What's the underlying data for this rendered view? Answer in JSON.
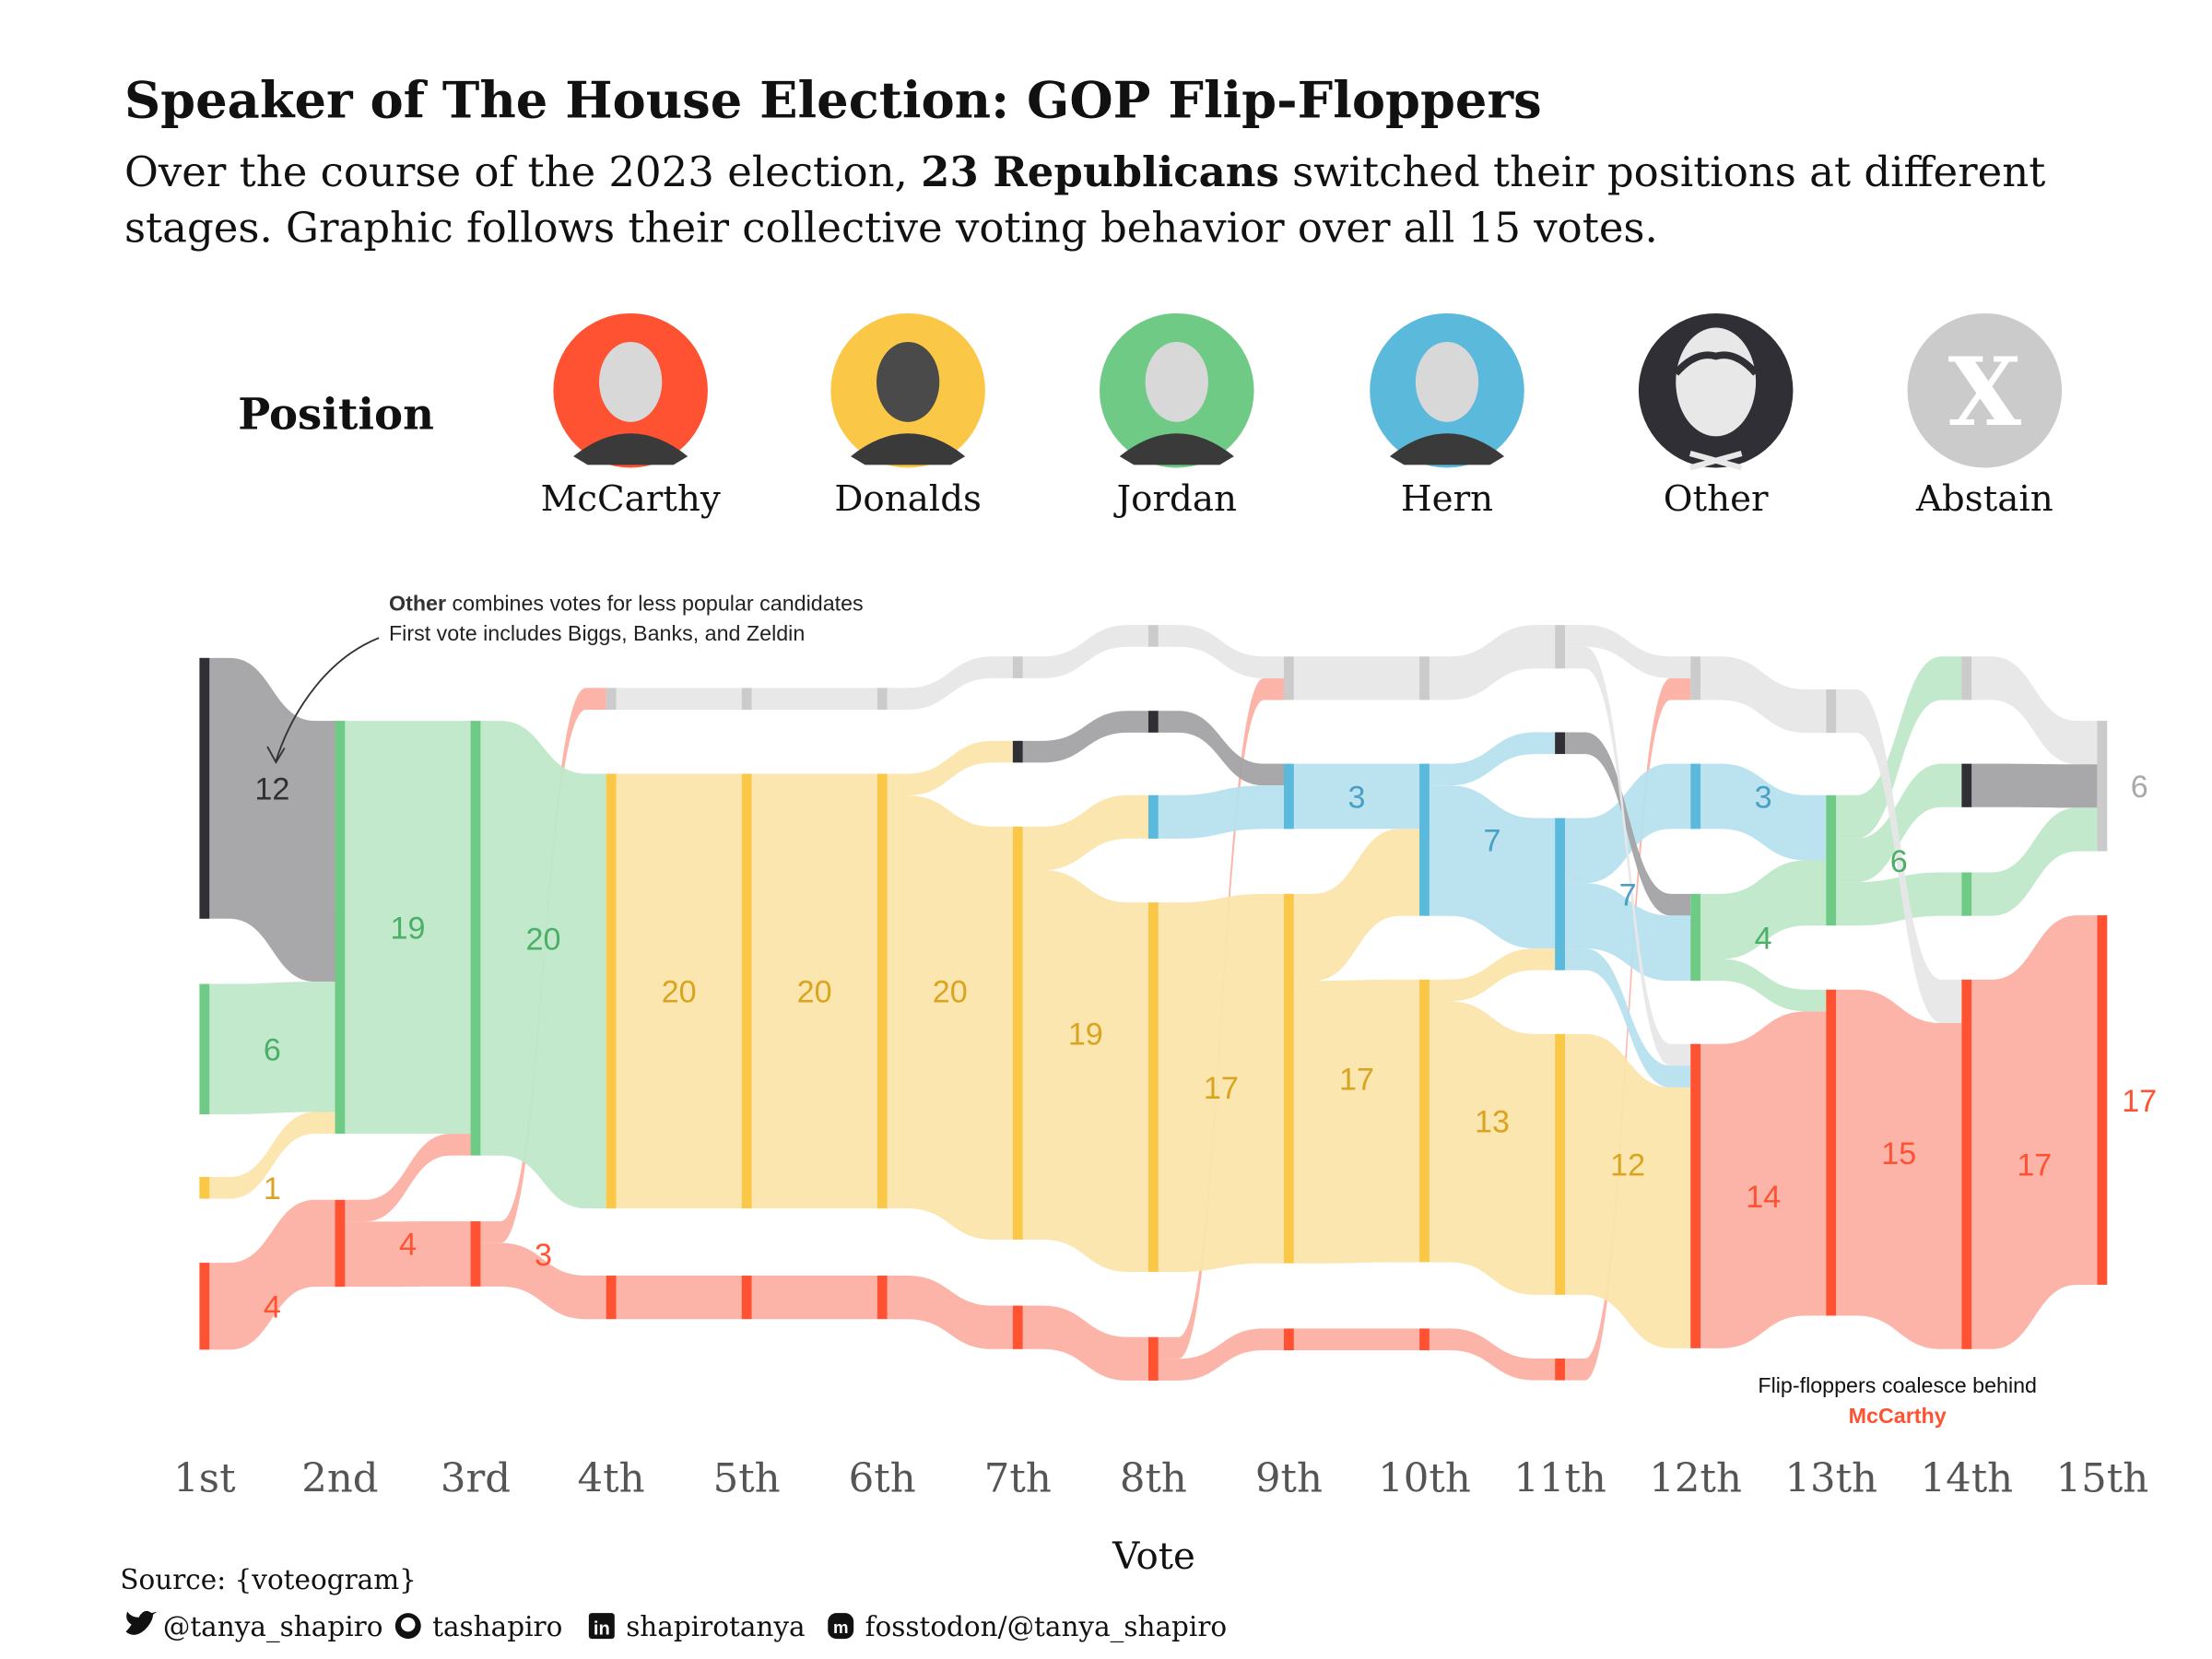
{
  "header": {
    "title": "Speaker of The House Election: GOP Flip-Floppers",
    "subtitle_pre": "Over the course of the 2023 election, ",
    "subtitle_bold": "23 Republicans",
    "subtitle_post": " switched their positions at different",
    "subtitle_line2": "stages. Graphic follows their collective voting behavior over all 15 votes."
  },
  "legend": {
    "title": "Position",
    "items": [
      {
        "key": "mccarthy",
        "label": "McCarthy",
        "icon": "portrait-mccarthy-icon"
      },
      {
        "key": "donalds",
        "label": "Donalds",
        "icon": "portrait-donalds-icon"
      },
      {
        "key": "jordan",
        "label": "Jordan",
        "icon": "portrait-jordan-icon"
      },
      {
        "key": "hern",
        "label": "Hern",
        "icon": "portrait-hern-icon"
      },
      {
        "key": "other",
        "label": "Other",
        "icon": "generic-person-icon"
      },
      {
        "key": "abstain",
        "label": "Abstain",
        "icon": "x-mark-icon"
      }
    ]
  },
  "colors": {
    "mccarthy": {
      "node": "#FF5232",
      "flow": "#FDB0A3",
      "label": "#FF5232"
    },
    "donalds": {
      "node": "#FAC746",
      "flow": "#FBE5AB",
      "label": "#D9A521"
    },
    "jordan": {
      "node": "#6FCA86",
      "flow": "#BFE8C8",
      "label": "#4CAF67"
    },
    "hern": {
      "node": "#5BB9DB",
      "flow": "#B7E0EE",
      "label": "#4A9FC4"
    },
    "other": {
      "node": "#2F2F35",
      "flow": "#A3A3A6",
      "label": "#2F2F35"
    },
    "abstain": {
      "node": "#CBCBCB",
      "flow": "#E7E7E7",
      "label": "#A9A9A9"
    }
  },
  "annotations": {
    "other_note_bold": "Other",
    "other_note_rest": " combines votes for less popular candidates",
    "other_note_line2": "First vote includes Biggs, Banks, and Zeldin",
    "coalesce_line1": "Flip-floppers coalesce behind",
    "coalesce_line2": "McCarthy"
  },
  "footer": {
    "source": "Source: {voteogram}",
    "socials": [
      {
        "icon": "twitter-icon",
        "label": "@tanya_shapiro"
      },
      {
        "icon": "github-icon",
        "label": "tashapiro"
      },
      {
        "icon": "linkedin-icon",
        "label": "shapirotanya"
      },
      {
        "icon": "mastodon-icon",
        "label": "fosstodon/@tanya_shapiro"
      }
    ]
  },
  "chart_data": {
    "type": "sankey",
    "title": "Speaker of The House Election: GOP Flip-Floppers",
    "xlabel": "Vote",
    "total_members": 23,
    "categories": [
      "1st",
      "2nd",
      "3rd",
      "4th",
      "5th",
      "6th",
      "7th",
      "8th",
      "9th",
      "10th",
      "11th",
      "12th",
      "13th",
      "14th",
      "15th"
    ],
    "nodes": [
      [
        {
          "pos": "other",
          "n": 12,
          "label": true
        },
        {
          "pos": "jordan",
          "n": 6,
          "label": true
        },
        {
          "pos": "donalds",
          "n": 1,
          "label": true
        },
        {
          "pos": "mccarthy",
          "n": 4,
          "label": true
        }
      ],
      [
        {
          "pos": "jordan",
          "n": 19,
          "label": true
        },
        {
          "pos": "mccarthy",
          "n": 4,
          "label": true
        }
      ],
      [
        {
          "pos": "jordan",
          "n": 20,
          "label": true
        },
        {
          "pos": "mccarthy",
          "n": 3,
          "label": true
        }
      ],
      [
        {
          "pos": "abstain",
          "n": 1
        },
        {
          "pos": "donalds",
          "n": 20,
          "label": true
        },
        {
          "pos": "mccarthy",
          "n": 2
        }
      ],
      [
        {
          "pos": "abstain",
          "n": 1
        },
        {
          "pos": "donalds",
          "n": 20,
          "label": true
        },
        {
          "pos": "mccarthy",
          "n": 2
        }
      ],
      [
        {
          "pos": "abstain",
          "n": 1
        },
        {
          "pos": "donalds",
          "n": 20,
          "label": true
        },
        {
          "pos": "mccarthy",
          "n": 2
        }
      ],
      [
        {
          "pos": "abstain",
          "n": 1
        },
        {
          "pos": "other",
          "n": 1
        },
        {
          "pos": "donalds",
          "n": 19,
          "label": true
        },
        {
          "pos": "mccarthy",
          "n": 2
        }
      ],
      [
        {
          "pos": "abstain",
          "n": 1
        },
        {
          "pos": "other",
          "n": 1
        },
        {
          "pos": "hern",
          "n": 2
        },
        {
          "pos": "donalds",
          "n": 17,
          "label": true
        },
        {
          "pos": "mccarthy",
          "n": 2
        }
      ],
      [
        {
          "pos": "abstain",
          "n": 2
        },
        {
          "pos": "hern",
          "n": 3,
          "label": true
        },
        {
          "pos": "donalds",
          "n": 17,
          "label": true
        },
        {
          "pos": "mccarthy",
          "n": 1
        }
      ],
      [
        {
          "pos": "abstain",
          "n": 2
        },
        {
          "pos": "hern",
          "n": 7,
          "label": true
        },
        {
          "pos": "donalds",
          "n": 13,
          "label": true
        },
        {
          "pos": "mccarthy",
          "n": 1
        }
      ],
      [
        {
          "pos": "abstain",
          "n": 2
        },
        {
          "pos": "other",
          "n": 1
        },
        {
          "pos": "hern",
          "n": 7,
          "label": true
        },
        {
          "pos": "donalds",
          "n": 12,
          "label": true
        },
        {
          "pos": "mccarthy",
          "n": 1
        }
      ],
      [
        {
          "pos": "abstain",
          "n": 2
        },
        {
          "pos": "hern",
          "n": 3,
          "label": true
        },
        {
          "pos": "jordan",
          "n": 4,
          "label": true
        },
        {
          "pos": "mccarthy",
          "n": 14,
          "label": true
        }
      ],
      [
        {
          "pos": "abstain",
          "n": 2
        },
        {
          "pos": "jordan",
          "n": 6,
          "label": true
        },
        {
          "pos": "mccarthy",
          "n": 15,
          "label": true
        }
      ],
      [
        {
          "pos": "abstain",
          "n": 2
        },
        {
          "pos": "other",
          "n": 2
        },
        {
          "pos": "jordan",
          "n": 2
        },
        {
          "pos": "mccarthy",
          "n": 17,
          "label": true
        }
      ],
      [
        {
          "pos": "abstain",
          "n": 6,
          "label": true
        },
        {
          "pos": "mccarthy",
          "n": 17,
          "label": true
        }
      ]
    ],
    "flows": [
      [
        [
          "other",
          "jordan",
          12
        ],
        [
          "jordan",
          "jordan",
          6
        ],
        [
          "donalds",
          "jordan",
          1
        ],
        [
          "mccarthy",
          "mccarthy",
          4
        ]
      ],
      [
        [
          "jordan",
          "jordan",
          19
        ],
        [
          "mccarthy",
          "jordan",
          1
        ],
        [
          "mccarthy",
          "mccarthy",
          3
        ]
      ],
      [
        [
          "mccarthy",
          "abstain",
          1
        ],
        [
          "jordan",
          "donalds",
          20
        ],
        [
          "mccarthy",
          "mccarthy",
          2
        ]
      ],
      [
        [
          "abstain",
          "abstain",
          1
        ],
        [
          "donalds",
          "donalds",
          20
        ],
        [
          "mccarthy",
          "mccarthy",
          2
        ]
      ],
      [
        [
          "abstain",
          "abstain",
          1
        ],
        [
          "donalds",
          "donalds",
          20
        ],
        [
          "mccarthy",
          "mccarthy",
          2
        ]
      ],
      [
        [
          "abstain",
          "abstain",
          1
        ],
        [
          "donalds",
          "other",
          1
        ],
        [
          "donalds",
          "donalds",
          19
        ],
        [
          "mccarthy",
          "mccarthy",
          2
        ]
      ],
      [
        [
          "abstain",
          "abstain",
          1
        ],
        [
          "other",
          "other",
          1
        ],
        [
          "donalds",
          "hern",
          2
        ],
        [
          "donalds",
          "donalds",
          17
        ],
        [
          "mccarthy",
          "mccarthy",
          2
        ]
      ],
      [
        [
          "abstain",
          "abstain",
          1
        ],
        [
          "mccarthy",
          "abstain",
          1
        ],
        [
          "other",
          "hern",
          1
        ],
        [
          "hern",
          "hern",
          2
        ],
        [
          "donalds",
          "donalds",
          17
        ],
        [
          "mccarthy",
          "mccarthy",
          1
        ]
      ],
      [
        [
          "abstain",
          "abstain",
          2
        ],
        [
          "hern",
          "hern",
          3
        ],
        [
          "donalds",
          "hern",
          4
        ],
        [
          "donalds",
          "donalds",
          13
        ],
        [
          "mccarthy",
          "mccarthy",
          1
        ]
      ],
      [
        [
          "abstain",
          "abstain",
          2
        ],
        [
          "hern",
          "other",
          1
        ],
        [
          "hern",
          "hern",
          6
        ],
        [
          "donalds",
          "hern",
          1
        ],
        [
          "donalds",
          "donalds",
          12
        ],
        [
          "mccarthy",
          "mccarthy",
          1
        ]
      ],
      [
        [
          "abstain",
          "abstain",
          1
        ],
        [
          "mccarthy",
          "abstain",
          1
        ],
        [
          "hern",
          "hern",
          3
        ],
        [
          "other",
          "jordan",
          1
        ],
        [
          "hern",
          "jordan",
          3
        ],
        [
          "abstain",
          "mccarthy",
          1
        ],
        [
          "hern",
          "mccarthy",
          1
        ],
        [
          "donalds",
          "mccarthy",
          12
        ]
      ],
      [
        [
          "abstain",
          "abstain",
          2
        ],
        [
          "hern",
          "jordan",
          3
        ],
        [
          "jordan",
          "jordan",
          3
        ],
        [
          "jordan",
          "mccarthy",
          1
        ],
        [
          "mccarthy",
          "mccarthy",
          14
        ]
      ],
      [
        [
          "jordan",
          "abstain",
          2
        ],
        [
          "jordan",
          "other",
          2
        ],
        [
          "jordan",
          "jordan",
          2
        ],
        [
          "abstain",
          "mccarthy",
          2
        ],
        [
          "mccarthy",
          "mccarthy",
          15
        ]
      ],
      [
        [
          "abstain",
          "abstain",
          2
        ],
        [
          "other",
          "abstain",
          2
        ],
        [
          "jordan",
          "abstain",
          2
        ],
        [
          "mccarthy",
          "mccarthy",
          17
        ]
      ]
    ]
  }
}
